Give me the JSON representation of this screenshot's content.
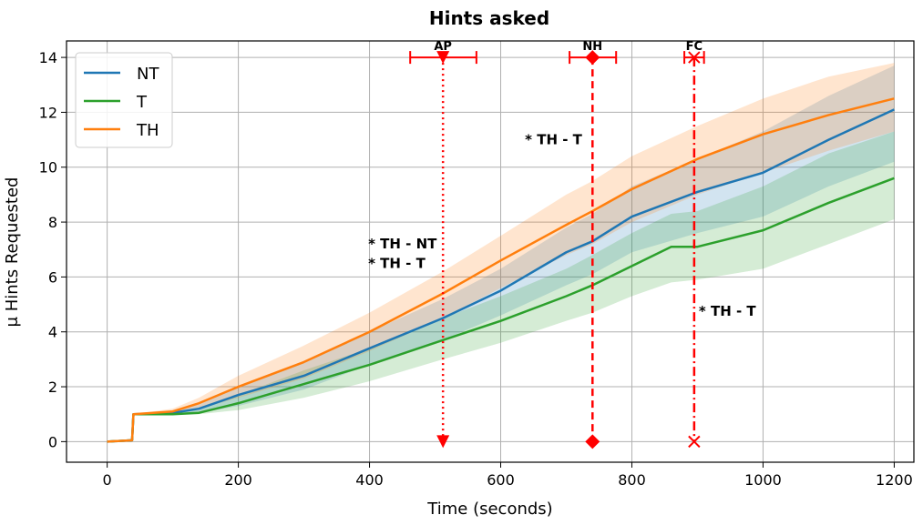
{
  "chart_data": {
    "type": "line",
    "title": "Hints asked",
    "xlabel": "Time (seconds)",
    "ylabel": "μ Hints Requested",
    "xlim": [
      -62,
      1230
    ],
    "ylim": [
      -0.75,
      14.6
    ],
    "xticks": [
      0,
      200,
      400,
      600,
      800,
      1000,
      1200
    ],
    "yticks": [
      0,
      2,
      4,
      6,
      8,
      10,
      12,
      14
    ],
    "xtick_labels": [
      "0",
      "200",
      "400",
      "600",
      "800",
      "1000",
      "1200"
    ],
    "ytick_labels": [
      "0",
      "2",
      "4",
      "6",
      "8",
      "10",
      "12",
      "14"
    ],
    "grid": true,
    "legend_position": "top-left",
    "series": [
      {
        "name": "NT",
        "color": "#1f77b4",
        "x": [
          0,
          38,
          40,
          100,
          140,
          200,
          300,
          400,
          512,
          600,
          700,
          740,
          800,
          900,
          1000,
          1100,
          1200
        ],
        "y": [
          0,
          0.05,
          1.0,
          1.05,
          1.2,
          1.7,
          2.4,
          3.4,
          4.5,
          5.5,
          6.9,
          7.3,
          8.2,
          9.1,
          9.8,
          11.0,
          12.1
        ],
        "lower": [
          0,
          0.05,
          1.0,
          1.0,
          1.05,
          1.3,
          1.9,
          2.8,
          3.7,
          4.6,
          5.7,
          6.1,
          6.9,
          7.6,
          8.2,
          9.3,
          10.2
        ],
        "upper": [
          0,
          0.05,
          1.0,
          1.1,
          1.35,
          2.0,
          2.9,
          4.0,
          5.2,
          6.3,
          7.8,
          8.3,
          9.3,
          10.3,
          11.3,
          12.6,
          13.7
        ]
      },
      {
        "name": "T",
        "color": "#2ca02c",
        "x": [
          0,
          38,
          40,
          100,
          140,
          200,
          300,
          400,
          512,
          600,
          700,
          740,
          800,
          860,
          900,
          1000,
          1100,
          1200
        ],
        "y": [
          0,
          0.05,
          1.0,
          1.0,
          1.05,
          1.4,
          2.1,
          2.8,
          3.7,
          4.4,
          5.3,
          5.7,
          6.4,
          7.1,
          7.1,
          7.7,
          8.7,
          9.6
        ],
        "lower": [
          0,
          0.05,
          1.0,
          1.0,
          1.0,
          1.15,
          1.6,
          2.2,
          3.0,
          3.6,
          4.4,
          4.7,
          5.3,
          5.8,
          5.9,
          6.3,
          7.2,
          8.1
        ],
        "upper": [
          0,
          0.05,
          1.0,
          1.05,
          1.15,
          1.7,
          2.6,
          3.4,
          4.5,
          5.3,
          6.3,
          6.8,
          7.6,
          8.3,
          8.4,
          9.3,
          10.5,
          11.3
        ]
      },
      {
        "name": "TH",
        "color": "#ff7f0e",
        "x": [
          0,
          38,
          40,
          100,
          140,
          200,
          300,
          400,
          512,
          600,
          700,
          740,
          800,
          900,
          1000,
          1100,
          1200
        ],
        "y": [
          0,
          0.05,
          1.0,
          1.1,
          1.4,
          2.0,
          2.9,
          4.0,
          5.4,
          6.6,
          7.9,
          8.4,
          9.2,
          10.3,
          11.2,
          11.9,
          12.5
        ],
        "lower": [
          0,
          0.05,
          1.0,
          1.0,
          1.2,
          1.6,
          2.3,
          3.3,
          4.5,
          5.6,
          6.8,
          7.2,
          8.0,
          9.0,
          9.8,
          10.6,
          11.3
        ],
        "upper": [
          0,
          0.05,
          1.0,
          1.2,
          1.6,
          2.4,
          3.5,
          4.7,
          6.2,
          7.5,
          9.0,
          9.5,
          10.4,
          11.5,
          12.5,
          13.3,
          13.8
        ]
      }
    ],
    "markers": [
      {
        "label": "AP",
        "x": 512,
        "xerr": [
          462,
          563
        ],
        "y": 14,
        "style": "dotted",
        "shape": "triangle"
      },
      {
        "label": "NH",
        "x": 740,
        "xerr": [
          705,
          776
        ],
        "y": 14,
        "style": "dashed",
        "shape": "diamond"
      },
      {
        "label": "FC",
        "x": 895,
        "xerr": [
          880,
          910
        ],
        "y": 14,
        "style": "dashdot",
        "shape": "x"
      }
    ],
    "marker_color": "#ff0000",
    "annotations": [
      {
        "text": "* TH - NT",
        "x": 398,
        "y": 7.2
      },
      {
        "text": "* TH - T",
        "x": 398,
        "y": 6.5
      },
      {
        "text": "* TH - T",
        "x": 637,
        "y": 11.0
      },
      {
        "text": "* TH - T",
        "x": 902,
        "y": 4.75
      }
    ]
  }
}
